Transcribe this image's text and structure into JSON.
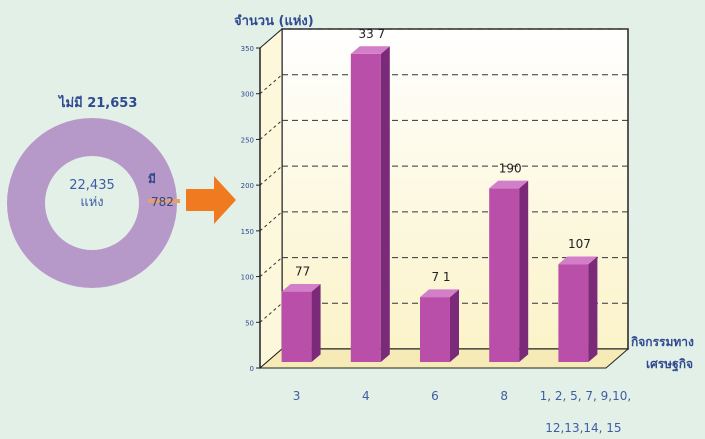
{
  "donut": {
    "outer_label": "ไม่มี 21,653",
    "center_value": "22,435",
    "center_unit": "แห่ง",
    "slice_label": "มี",
    "slice_value": "782",
    "total": 22435,
    "without": 21653,
    "with": 782,
    "main_color": "#b699c9",
    "slice_color": "#e8a06a"
  },
  "arrow_color": "#f07a20",
  "chart_data": {
    "type": "bar",
    "ylabel": "จำนวน (แห่ง)",
    "xlabel_line1": "กิจกรรมทาง",
    "xlabel_line2": "เศรษฐกิจ",
    "categories": [
      "3",
      "4",
      "6",
      "8",
      "1, 2, 5, 7, 9,10,"
    ],
    "category_extra_line": "12,13,14, 15",
    "values": [
      77,
      337,
      71,
      190,
      107
    ],
    "data_labels": [
      "77",
      "33 7",
      "7 1",
      "190",
      "107"
    ],
    "yticks": [
      0,
      50,
      100,
      150,
      200,
      250,
      300,
      350
    ],
    "ylim": [
      0,
      350
    ],
    "bar_color": "#b94fa8",
    "bar_side_color": "#7a2a78",
    "bar_top_color": "#d27ec8",
    "grid": true
  }
}
